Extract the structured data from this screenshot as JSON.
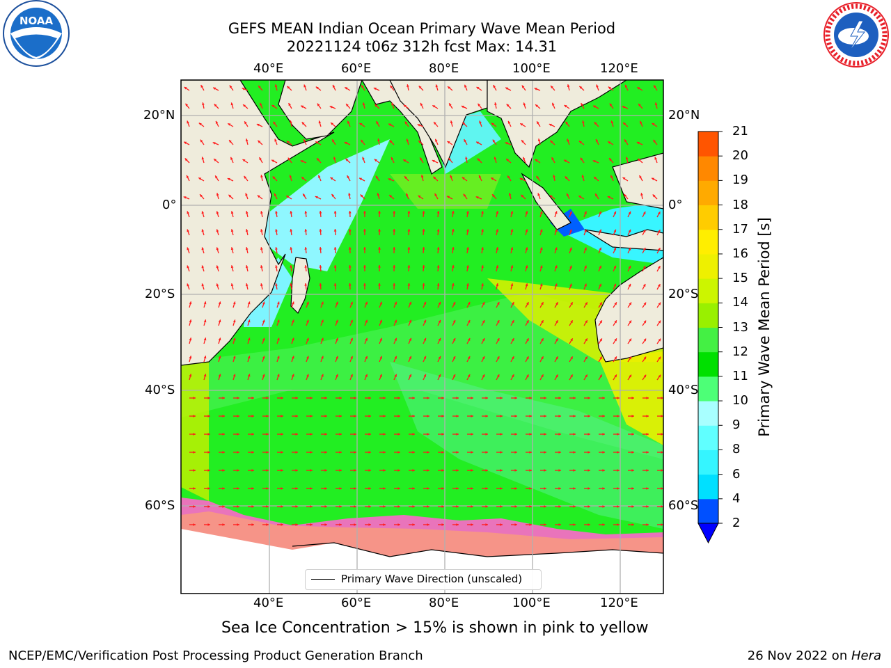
{
  "header": {
    "title_line1": "GEFS MEAN Indian Ocean Primary Wave Mean Period",
    "title_line2": "20221124 t06z 312h fcst   Max: 14.31"
  },
  "logos": {
    "noaa": {
      "icon": "noaa-logo",
      "lettering": "NOAA",
      "ring_text": "NATIONAL OCEANIC AND ATMOSPHERIC ADMINISTRATION · U.S. DEPARTMENT OF COMMERCE",
      "color": "#1b4f9c"
    },
    "nws": {
      "icon": "nws-logo",
      "ring_text": "NATIONAL WEATHER SERVICE",
      "color": "#e8202a"
    }
  },
  "map": {
    "lon_ticks": [
      "40°E",
      "60°E",
      "80°E",
      "100°E",
      "120°E"
    ],
    "lat_ticks": [
      "20°N",
      "0°",
      "20°S",
      "40°S",
      "60°S"
    ],
    "land_color": "#efecdc",
    "ocean_color": "#22ee22",
    "arrow_color": "#ff1a1a"
  },
  "colorbar": {
    "title": "Primary Wave Mean Period [s]",
    "labels": [
      "2",
      "4",
      "6",
      "8",
      "9",
      "10",
      "11",
      "12",
      "13",
      "14",
      "15",
      "16",
      "17",
      "18",
      "19",
      "20",
      "21"
    ],
    "colors": [
      "#0050ff",
      "#00e0ff",
      "#35f5ff",
      "#60ffff",
      "#a8ffff",
      "#4dff77",
      "#00e000",
      "#44f044",
      "#99f000",
      "#ccf500",
      "#eef000",
      "#ffee00",
      "#ffcc00",
      "#ffaa00",
      "#ff8800",
      "#ff5500",
      "#ff2200",
      "#ff0000"
    ],
    "extend_color": "#0000ff"
  },
  "legend": {
    "label": "Primary Wave Direction (unscaled)"
  },
  "subtitle": "Sea Ice Concentration > 15% is shown in pink to yellow",
  "footer": {
    "left": "NCEP/EMC/Verification Post Processing Product Generation Branch",
    "right_date": "26 Nov 2022 on ",
    "right_host": "Hera"
  }
}
